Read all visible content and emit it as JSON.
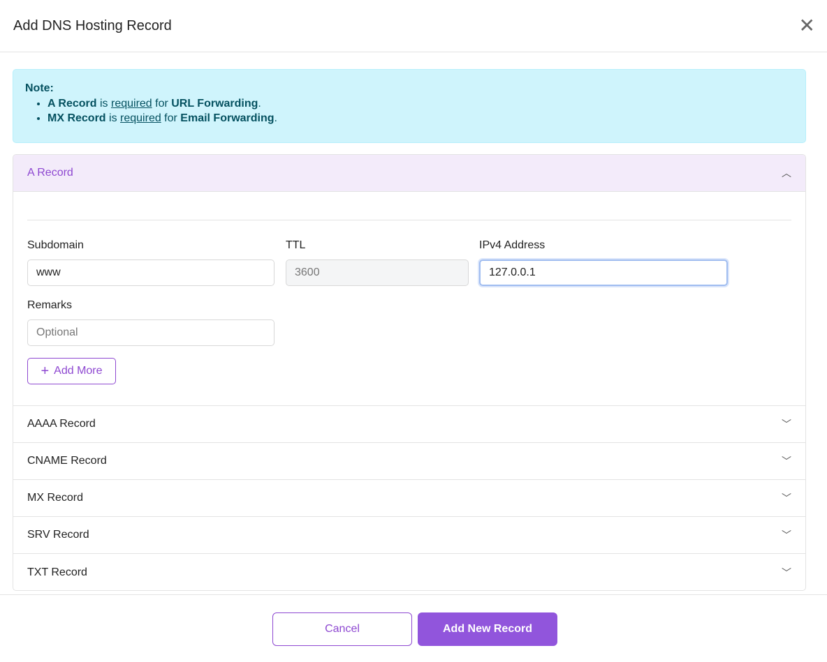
{
  "dialog": {
    "title": "Add DNS Hosting Record",
    "close_icon": "close-icon"
  },
  "note": {
    "heading": "Note:",
    "items": [
      {
        "bold1": "A Record",
        "t1": " is ",
        "link": "required",
        "t2": " for ",
        "bold2": "URL Forwarding",
        "t3": "."
      },
      {
        "bold1": "MX Record",
        "t1": " is ",
        "link": "required",
        "t2": " for ",
        "bold2": "Email Forwarding",
        "t3": "."
      }
    ]
  },
  "a_record": {
    "title": "A Record",
    "subdomain": {
      "label": "Subdomain",
      "value": "www"
    },
    "ttl": {
      "label": "TTL",
      "value": "3600"
    },
    "ipv4": {
      "label": "IPv4 Address",
      "value": "127.0.0.1"
    },
    "remarks": {
      "label": "Remarks",
      "placeholder": "Optional"
    },
    "add_more": "Add More"
  },
  "sections": [
    "AAAA Record",
    "CNAME Record",
    "MX Record",
    "SRV Record",
    "TXT Record"
  ],
  "footer": {
    "cancel": "Cancel",
    "submit": "Add New Record"
  },
  "colors": {
    "accent": "#9155dc",
    "note_bg": "#cff4fc"
  }
}
